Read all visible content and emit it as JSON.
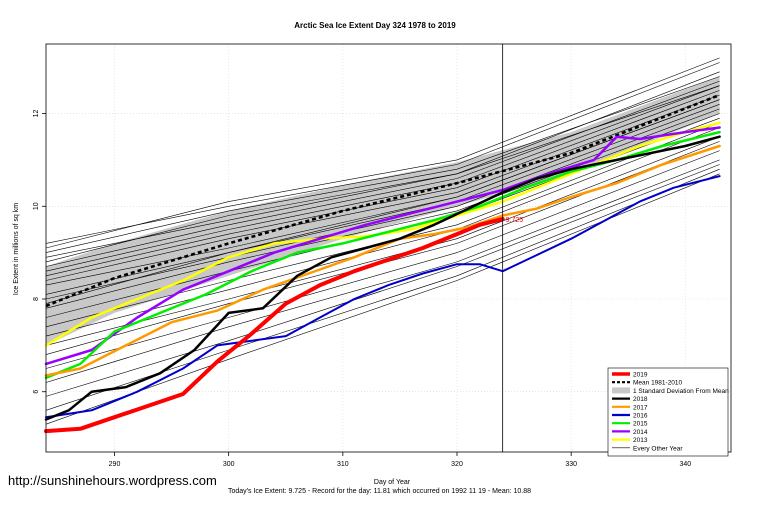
{
  "chart_data": {
    "type": "line",
    "title": "Arctic Sea Ice Extent Day 324 1978 to 2019",
    "xlabel": "Day of Year",
    "ylabel": "Ice Extent in millions of sq km",
    "xlim": [
      284,
      344
    ],
    "ylim": [
      4.7,
      13.5
    ],
    "x_ticks": [
      290,
      300,
      310,
      320,
      330,
      340
    ],
    "y_ticks": [
      6,
      8,
      10,
      12
    ],
    "current_day": 324,
    "current_value_label": "9.725",
    "grid": true,
    "legend_position": "bottom-right",
    "legend": [
      {
        "label": "2019",
        "color": "#ff0000",
        "style": "solid-thick"
      },
      {
        "label": "Mean 1981-2010",
        "color": "#000000",
        "style": "dashed"
      },
      {
        "label": "1 Standard Deviation From Mean",
        "color": "#c8c8c8",
        "style": "band"
      },
      {
        "label": "2018",
        "color": "#000000",
        "style": "solid"
      },
      {
        "label": "2017",
        "color": "#ff9900",
        "style": "solid"
      },
      {
        "label": "2016",
        "color": "#0000cc",
        "style": "solid"
      },
      {
        "label": "2015",
        "color": "#00ee00",
        "style": "solid"
      },
      {
        "label": "2014",
        "color": "#9900ff",
        "style": "solid"
      },
      {
        "label": "2013",
        "color": "#ffff00",
        "style": "solid"
      },
      {
        "label": "Every Other Year",
        "color": "#000000",
        "style": "thin"
      }
    ],
    "mean": {
      "x": [
        284,
        290,
        300,
        310,
        320,
        330,
        343
      ],
      "y": [
        7.85,
        8.45,
        9.2,
        9.9,
        10.5,
        11.15,
        12.4
      ]
    },
    "std_upper": {
      "x": [
        284,
        290,
        300,
        310,
        320,
        330,
        343
      ],
      "y": [
        8.7,
        9.2,
        9.9,
        10.45,
        10.95,
        11.6,
        12.8
      ]
    },
    "std_lower": {
      "x": [
        284,
        290,
        300,
        310,
        320,
        330,
        343
      ],
      "y": [
        7.0,
        7.7,
        8.5,
        9.3,
        10.0,
        10.7,
        12.0
      ]
    },
    "series": [
      {
        "name": "2019",
        "color": "#ff0000",
        "width": 4,
        "x": [
          284,
          287,
          290,
          293,
          296,
          299,
          302,
          305,
          308,
          311,
          314,
          317,
          320,
          322,
          324
        ],
        "y": [
          5.15,
          5.2,
          5.45,
          5.7,
          5.95,
          6.65,
          7.25,
          7.9,
          8.3,
          8.6,
          8.85,
          9.1,
          9.4,
          9.6,
          9.725
        ]
      },
      {
        "name": "2018",
        "color": "#000000",
        "width": 2.5,
        "x": [
          284,
          286,
          288,
          291,
          294,
          297,
          300,
          303,
          306,
          309,
          312,
          315,
          318,
          321,
          324,
          327,
          330,
          333,
          336,
          340,
          343
        ],
        "y": [
          5.4,
          5.6,
          6.0,
          6.1,
          6.4,
          6.9,
          7.7,
          7.8,
          8.5,
          8.9,
          9.1,
          9.3,
          9.6,
          9.95,
          10.3,
          10.6,
          10.8,
          10.95,
          11.1,
          11.3,
          11.5
        ]
      },
      {
        "name": "2017",
        "color": "#ff9900",
        "width": 2.5,
        "x": [
          284,
          287,
          291,
          295,
          299,
          303,
          307,
          311,
          315,
          318,
          321,
          324,
          327,
          330,
          334,
          338,
          343
        ],
        "y": [
          6.35,
          6.5,
          7.0,
          7.5,
          7.75,
          8.2,
          8.55,
          8.9,
          9.3,
          9.4,
          9.55,
          9.8,
          9.95,
          10.2,
          10.5,
          10.9,
          11.3
        ]
      },
      {
        "name": "2016",
        "color": "#0000cc",
        "width": 2,
        "x": [
          284,
          288,
          292,
          296,
          299,
          302,
          305,
          308,
          311,
          314,
          317,
          320,
          322,
          324,
          327,
          330,
          333,
          336,
          339,
          343
        ],
        "y": [
          5.45,
          5.6,
          6.0,
          6.5,
          7.0,
          7.1,
          7.2,
          7.6,
          8.0,
          8.3,
          8.55,
          8.75,
          8.75,
          8.6,
          8.95,
          9.3,
          9.7,
          10.1,
          10.4,
          10.65
        ]
      },
      {
        "name": "2015",
        "color": "#00ee00",
        "width": 2.5,
        "x": [
          284,
          287,
          290,
          294,
          298,
          302,
          306,
          310,
          314,
          318,
          322,
          326,
          330,
          334,
          338,
          343
        ],
        "y": [
          6.3,
          6.6,
          7.3,
          7.7,
          8.1,
          8.6,
          9.0,
          9.2,
          9.45,
          9.7,
          10.0,
          10.4,
          10.75,
          11.0,
          11.3,
          11.6
        ]
      },
      {
        "name": "2014",
        "color": "#9900ff",
        "width": 2.5,
        "x": [
          284,
          288,
          292,
          296,
          300,
          304,
          308,
          312,
          316,
          320,
          324,
          328,
          332,
          334,
          336,
          340,
          343
        ],
        "y": [
          6.6,
          6.9,
          7.6,
          8.2,
          8.6,
          9.0,
          9.3,
          9.6,
          9.85,
          10.1,
          10.35,
          10.7,
          11.0,
          11.5,
          11.45,
          11.6,
          11.7
        ]
      },
      {
        "name": "2013",
        "color": "#ffff00",
        "width": 2.5,
        "x": [
          284,
          288,
          292,
          296,
          300,
          304,
          308,
          312,
          316,
          320,
          324,
          328,
          332,
          336,
          340,
          343
        ],
        "y": [
          7.0,
          7.6,
          8.0,
          8.4,
          8.9,
          9.2,
          9.3,
          9.35,
          9.5,
          9.8,
          10.1,
          10.5,
          10.9,
          11.3,
          11.6,
          11.8
        ]
      }
    ],
    "other_years": [
      {
        "x": [
          284,
          300,
          320,
          343
        ],
        "y": [
          9.2,
          10.0,
          10.9,
          13.1
        ]
      },
      {
        "x": [
          284,
          300,
          320,
          343
        ],
        "y": [
          9.0,
          9.9,
          10.8,
          12.8
        ]
      },
      {
        "x": [
          284,
          300,
          320,
          343
        ],
        "y": [
          8.9,
          9.7,
          10.7,
          12.9
        ]
      },
      {
        "x": [
          284,
          300,
          320,
          343
        ],
        "y": [
          8.7,
          9.6,
          10.6,
          12.7
        ]
      },
      {
        "x": [
          284,
          300,
          320,
          343
        ],
        "y": [
          8.6,
          9.5,
          10.5,
          12.6
        ]
      },
      {
        "x": [
          284,
          300,
          320,
          343
        ],
        "y": [
          8.5,
          9.4,
          10.4,
          12.5
        ]
      },
      {
        "x": [
          284,
          300,
          320,
          343
        ],
        "y": [
          8.4,
          9.3,
          10.3,
          12.4
        ]
      },
      {
        "x": [
          284,
          300,
          320,
          343
        ],
        "y": [
          8.3,
          9.1,
          10.2,
          12.3
        ]
      },
      {
        "x": [
          284,
          300,
          320,
          343
        ],
        "y": [
          8.1,
          9.0,
          10.1,
          12.2
        ]
      },
      {
        "x": [
          284,
          300,
          320,
          343
        ],
        "y": [
          8.0,
          8.9,
          10.0,
          12.1
        ]
      },
      {
        "x": [
          284,
          300,
          320,
          343
        ],
        "y": [
          7.8,
          8.8,
          9.9,
          12.0
        ]
      },
      {
        "x": [
          284,
          300,
          320,
          343
        ],
        "y": [
          7.6,
          8.6,
          9.8,
          11.9
        ]
      },
      {
        "x": [
          284,
          300,
          320,
          343
        ],
        "y": [
          7.4,
          8.4,
          9.6,
          11.8
        ]
      },
      {
        "x": [
          284,
          300,
          320,
          343
        ],
        "y": [
          7.2,
          8.2,
          9.5,
          11.7
        ]
      },
      {
        "x": [
          284,
          300,
          320,
          343
        ],
        "y": [
          7.0,
          8.0,
          9.3,
          11.5
        ]
      },
      {
        "x": [
          284,
          300,
          320,
          343
        ],
        "y": [
          6.8,
          7.9,
          9.2,
          11.4
        ]
      },
      {
        "x": [
          284,
          300,
          320,
          343
        ],
        "y": [
          6.5,
          7.6,
          9.0,
          11.2
        ]
      },
      {
        "x": [
          284,
          300,
          320,
          343
        ],
        "y": [
          6.2,
          7.4,
          8.8,
          11.0
        ]
      },
      {
        "x": [
          284,
          300,
          320,
          343
        ],
        "y": [
          5.9,
          7.1,
          8.7,
          10.9
        ]
      },
      {
        "x": [
          284,
          300,
          320,
          343
        ],
        "y": [
          5.6,
          6.9,
          8.5,
          10.8
        ]
      },
      {
        "x": [
          284,
          300,
          320,
          343
        ],
        "y": [
          5.3,
          6.7,
          8.4,
          10.7
        ]
      },
      {
        "x": [
          284,
          300,
          320,
          343
        ],
        "y": [
          9.1,
          10.1,
          11.0,
          13.2
        ]
      },
      {
        "x": [
          284,
          300,
          320,
          343
        ],
        "y": [
          8.8,
          9.8,
          10.7,
          12.6
        ]
      },
      {
        "x": [
          284,
          300,
          320,
          343
        ],
        "y": [
          7.9,
          9.0,
          10.2,
          12.3
        ]
      }
    ]
  },
  "watermark": "http://sunshinehours.wordpress.com",
  "footer_note": "Today's Ice Extent: 9.725  - Record for the day: 11.81 which occurred on 1992 11 19  - Mean: 10.88"
}
